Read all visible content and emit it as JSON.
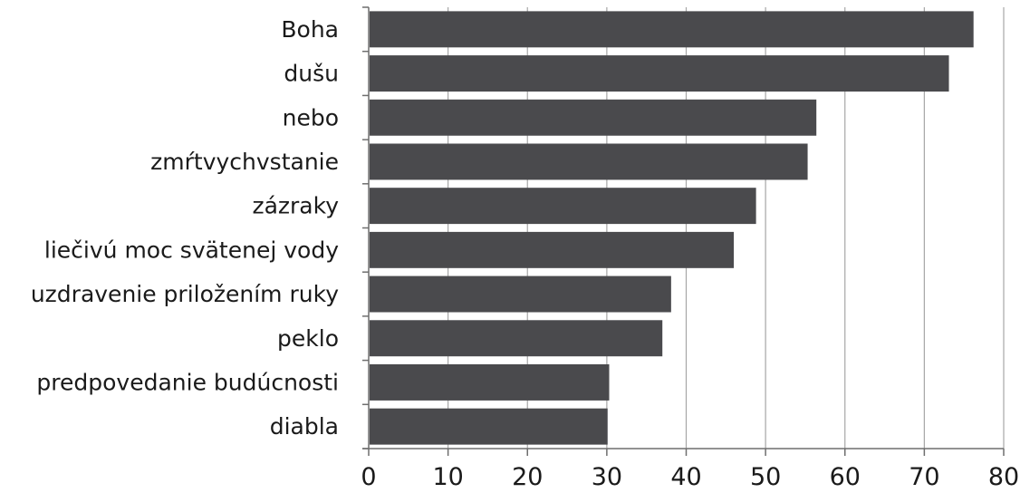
{
  "chart_data": {
    "type": "bar",
    "orientation": "horizontal",
    "categories": [
      "Boha",
      "dušu",
      "nebo",
      "zmŕtvychvstanie",
      "zázraky",
      "liečivú moc svätenej vody",
      "uzdravenie priložením ruky",
      "peklo",
      "predpovedanie budúcnosti",
      "diabla"
    ],
    "values": [
      76.2,
      73.1,
      56.4,
      55.3,
      48.8,
      46.0,
      38.1,
      37.0,
      30.3,
      30.1
    ],
    "xlim": [
      0,
      80
    ],
    "xticks": [
      0,
      10,
      20,
      30,
      40,
      50,
      60,
      70,
      80
    ],
    "grid": true,
    "bar_color": "#4a4a4d",
    "grid_color": "#a6a6a6",
    "axis_color": "#6e6e6e"
  }
}
